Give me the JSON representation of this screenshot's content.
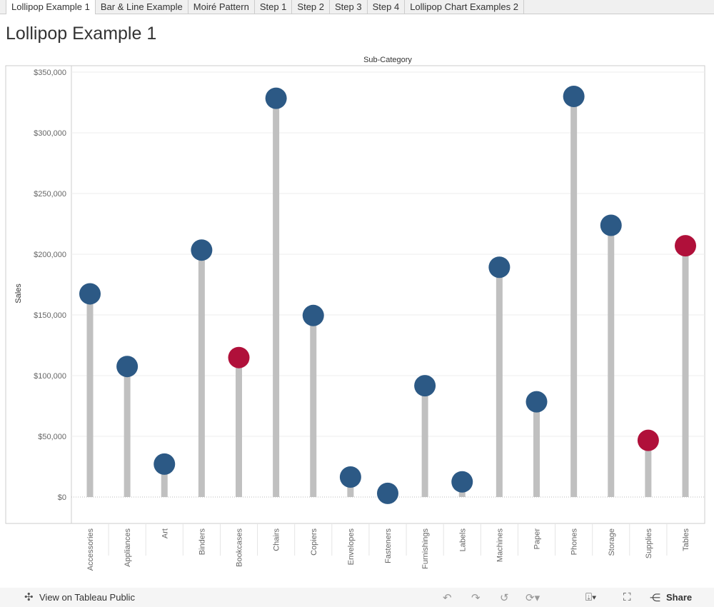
{
  "tabs": [
    {
      "label": "Lollipop Example 1",
      "active": true
    },
    {
      "label": "Bar & Line Example"
    },
    {
      "label": "Moiré Pattern"
    },
    {
      "label": "Step 1"
    },
    {
      "label": "Step 2"
    },
    {
      "label": "Step 3"
    },
    {
      "label": "Step 4"
    },
    {
      "label": "Lollipop Chart Examples 2"
    }
  ],
  "page_title": "Lollipop Example 1",
  "chart_data": {
    "type": "lollipop",
    "title": "",
    "column_header": "Sub-Category",
    "ylabel": "Sales",
    "ylim": [
      0,
      350000
    ],
    "yticks": [
      "$0",
      "$50,000",
      "$100,000",
      "$150,000",
      "$200,000",
      "$250,000",
      "$300,000",
      "$350,000"
    ],
    "grid": true,
    "categories": [
      "Accessories",
      "Appliances",
      "Art",
      "Binders",
      "Bookcases",
      "Chairs",
      "Copiers",
      "Envelopes",
      "Fasteners",
      "Furnishings",
      "Labels",
      "Machines",
      "Paper",
      "Phones",
      "Storage",
      "Supplies",
      "Tables"
    ],
    "values": [
      167380,
      107532,
      27119,
      203413,
      114880,
      328449,
      149528,
      16476,
      3024,
      91705,
      12486,
      189239,
      78479,
      330007,
      223844,
      46674,
      206966
    ],
    "highlighted": [
      false,
      false,
      false,
      false,
      true,
      false,
      false,
      false,
      false,
      false,
      false,
      false,
      false,
      false,
      false,
      true,
      true
    ],
    "colors": {
      "default": "#2c5985",
      "highlight": "#b0103a",
      "stem": "#c0c0c0"
    }
  },
  "footer": {
    "view_label": "View on Tableau Public",
    "share_label": "Share",
    "icons": [
      "tableau-icon",
      "undo-icon",
      "redo-icon",
      "revert-icon",
      "refresh-icon",
      "download-icon",
      "fullscreen-icon",
      "share-icon"
    ]
  }
}
